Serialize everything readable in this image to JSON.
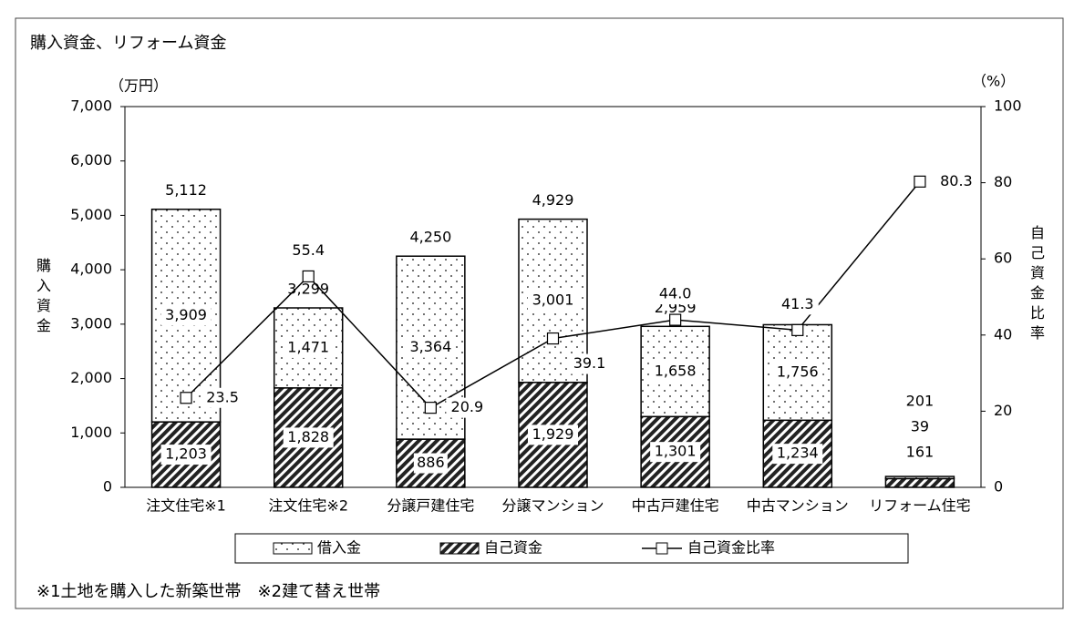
{
  "chart_data": {
    "type": "bar-line",
    "title": "購入資金、リフォーム資金",
    "y_unit": "（万円）",
    "y2_unit": "（%）",
    "y_label": "購入資金",
    "y2_label": "自己資金比率",
    "categories": [
      "注文住宅※1",
      "注文住宅※2",
      "分譲戸建住宅",
      "分譲マンション",
      "中古戸建住宅",
      "中古マンション",
      "リフォーム住宅"
    ],
    "series": [
      {
        "name": "自己資金",
        "type": "bar",
        "pattern": "hatch",
        "color": "#000000",
        "values": [
          1203,
          1828,
          886,
          1929,
          1301,
          1234,
          161
        ],
        "value_labels": [
          "1,203",
          "1,828",
          "886",
          "1,929",
          "1,301",
          "1,234",
          "161"
        ]
      },
      {
        "name": "借入金",
        "type": "bar",
        "pattern": "dots",
        "color": "#000000",
        "values": [
          3909,
          1471,
          3364,
          3001,
          1658,
          1756,
          39
        ],
        "value_labels": [
          "3,909",
          "1,471",
          "3,364",
          "3,001",
          "1,658",
          "1,756",
          "39"
        ]
      },
      {
        "name": "自己資金比率",
        "type": "line",
        "axis": "y2",
        "color": "#000000",
        "values": [
          23.5,
          55.4,
          20.9,
          39.1,
          44.0,
          41.3,
          80.3
        ],
        "value_labels": [
          "23.5",
          "55.4",
          "20.9",
          "39.1",
          "44.0",
          "41.3",
          "80.3"
        ]
      }
    ],
    "totals": [
      5112,
      3299,
      4250,
      4929,
      2959,
      2990,
      201
    ],
    "total_labels": [
      "5,112",
      "3,299",
      "4,250",
      "4,929",
      "2,959",
      "2,990",
      "201"
    ],
    "ylim": [
      0,
      7000
    ],
    "yticks": [
      0,
      {
        "value": 1000,
        "label": "1,000"
      },
      {
        "value": 2000,
        "label": "2,000"
      },
      {
        "value": 3000,
        "label": "3,000"
      },
      {
        "value": 4000,
        "label": "4,000"
      },
      {
        "value": 5000,
        "label": "5,000"
      },
      {
        "value": 6000,
        "label": "6,000"
      },
      {
        "value": 7000,
        "label": "7,000"
      }
    ],
    "y2lim": [
      0,
      100
    ],
    "y2ticks": [
      0,
      20,
      40,
      60,
      80,
      100
    ],
    "legend": "bottom",
    "footnote": "※1土地を購入した新築世帯　※2建て替え世帯"
  }
}
